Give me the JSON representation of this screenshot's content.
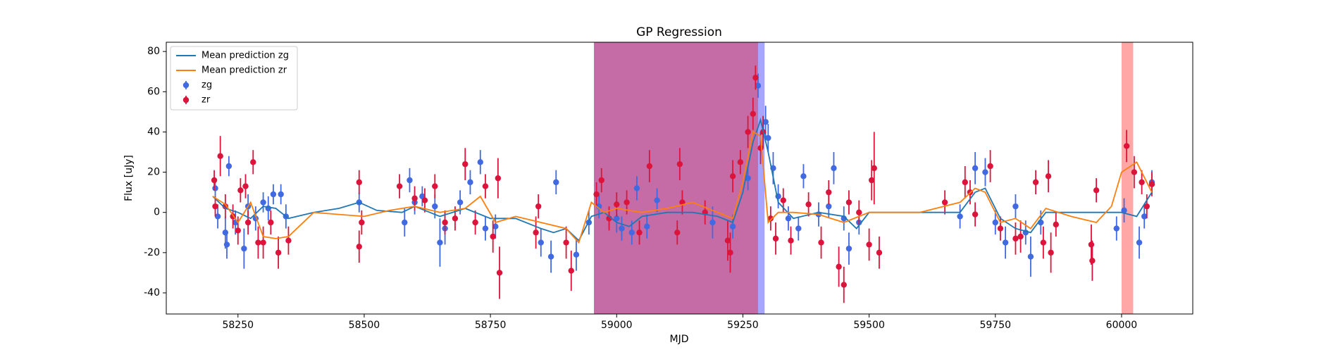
{
  "chart_data": {
    "type": "errorbar_gp",
    "title": "GP Regression",
    "x_label": "MJD",
    "y_label": "Flux [uJy]",
    "xlim": [
      58108,
      60141
    ],
    "ylim": [
      -50.5,
      84.6
    ],
    "xticks": [
      58250,
      58500,
      58750,
      59000,
      59250,
      59500,
      59750,
      60000
    ],
    "yticks": [
      -40,
      -20,
      0,
      20,
      40,
      60,
      80
    ],
    "legend": "upper left",
    "spans": [
      {
        "x": [
          58955,
          59293
        ],
        "color": "#0000ff",
        "alpha": 0.35
      },
      {
        "x": [
          58955,
          59280
        ],
        "color": "#ff0000",
        "alpha": 0.35
      },
      {
        "x": [
          60000,
          60023
        ],
        "color": "#ff0000",
        "alpha": 0.35
      }
    ],
    "series": [
      {
        "name": "Mean prediction zg",
        "kind": "line",
        "color": "#1f77b4",
        "x": [
          58200,
          58225,
          58250,
          58275,
          58300,
          58325,
          58350,
          58400,
          58450,
          58490,
          58525,
          58575,
          58600,
          58650,
          58700,
          58750,
          58800,
          58850,
          58875,
          58900,
          58925,
          58950,
          58975,
          59000,
          59025,
          59050,
          59100,
          59150,
          59200,
          59230,
          59250,
          59270,
          59285,
          59300,
          59320,
          59350,
          59400,
          59450,
          59475,
          59500,
          59600,
          59680,
          59710,
          59730,
          59760,
          59790,
          59820,
          59850,
          59900,
          59950,
          60000,
          60030,
          60060
        ],
        "values": [
          8,
          2,
          0,
          -3,
          3,
          2,
          -3,
          0,
          2,
          5,
          1,
          0,
          3,
          -2,
          2,
          -3,
          -3,
          -8,
          -10,
          -8,
          -14,
          -2,
          0,
          -5,
          -7,
          -2,
          0,
          0,
          -2,
          -5,
          10,
          35,
          46,
          30,
          5,
          -3,
          0,
          -2,
          -8,
          0,
          0,
          0,
          10,
          12,
          -3,
          -8,
          -10,
          0,
          0,
          0,
          0,
          -2,
          10
        ]
      },
      {
        "name": "Mean prediction zr",
        "kind": "line",
        "color": "#ff7f0e",
        "x": [
          58200,
          58225,
          58250,
          58275,
          58300,
          58325,
          58350,
          58400,
          58450,
          58500,
          58550,
          58575,
          58600,
          58650,
          58700,
          58730,
          58760,
          58800,
          58850,
          58900,
          58925,
          58950,
          58975,
          59000,
          59050,
          59100,
          59150,
          59200,
          59230,
          59250,
          59270,
          59285,
          59300,
          59320,
          59350,
          59400,
          59450,
          59500,
          59600,
          59680,
          59710,
          59730,
          59760,
          59790,
          59820,
          59850,
          59900,
          59950,
          59980,
          60000,
          60030,
          60060
        ],
        "values": [
          8,
          4,
          -5,
          5,
          -12,
          -13,
          -12,
          0,
          -1,
          -2,
          1,
          2,
          3,
          0,
          2,
          8,
          -5,
          -2,
          -5,
          -8,
          -15,
          5,
          0,
          2,
          0,
          2,
          5,
          0,
          -3,
          15,
          40,
          38,
          -5,
          0,
          0,
          -1,
          -5,
          0,
          0,
          5,
          12,
          10,
          -5,
          -3,
          -8,
          2,
          -2,
          -5,
          3,
          20,
          25,
          10
        ]
      },
      {
        "name": "zg",
        "kind": "points",
        "color": "#4169e1",
        "x": [
          58205,
          58210,
          58225,
          58228,
          58232,
          58245,
          58262,
          58270,
          58285,
          58300,
          58310,
          58320,
          58335,
          58345,
          58490,
          58580,
          58590,
          58600,
          58615,
          58640,
          58650,
          58660,
          58690,
          58710,
          58730,
          58740,
          58760,
          58850,
          58870,
          58880,
          58920,
          58945,
          58965,
          59000,
          59010,
          59030,
          59040,
          59060,
          59080,
          59190,
          59230,
          59260,
          59280,
          59295,
          59300,
          59310,
          59320,
          59340,
          59360,
          59370,
          59400,
          59420,
          59430,
          59450,
          59460,
          59480,
          59680,
          59710,
          59730,
          59750,
          59770,
          59790,
          59810,
          59820,
          59840,
          59990,
          60005,
          60035,
          60045,
          60060
        ],
        "values": [
          12,
          -2,
          -10,
          -16,
          23,
          -5,
          -18,
          3,
          -3,
          5,
          2,
          9,
          9,
          -2,
          5,
          -5,
          16,
          5,
          8,
          3,
          -15,
          -8,
          5,
          15,
          25,
          -8,
          -7,
          -15,
          -22,
          15,
          -21,
          -5,
          3,
          -3,
          -8,
          -10,
          12,
          -7,
          6,
          -5,
          -7,
          17,
          63,
          45,
          37,
          22,
          8,
          -3,
          -8,
          18,
          -1,
          3,
          22,
          -3,
          -18,
          -5,
          -2,
          22,
          20,
          -5,
          -15,
          3,
          -10,
          -22,
          -5,
          -8,
          1,
          -15,
          -2,
          15
        ],
        "errors": [
          4,
          6,
          8,
          7,
          5,
          6,
          10,
          6,
          6,
          5,
          6,
          5,
          5,
          6,
          5,
          7,
          6,
          6,
          5,
          6,
          12,
          8,
          6,
          6,
          6,
          6,
          6,
          7,
          8,
          6,
          8,
          6,
          6,
          7,
          6,
          6,
          6,
          6,
          6,
          8,
          6,
          6,
          6,
          8,
          7,
          8,
          6,
          6,
          6,
          6,
          6,
          6,
          8,
          6,
          8,
          6,
          6,
          8,
          7,
          6,
          8,
          6,
          6,
          10,
          6,
          6,
          6,
          8,
          6,
          6
        ]
      },
      {
        "name": "zr",
        "kind": "points",
        "color": "#dc143c",
        "x": [
          58203,
          58205,
          58215,
          58225,
          58240,
          58250,
          58255,
          58265,
          58270,
          58280,
          58290,
          58300,
          58315,
          58330,
          58350,
          58490,
          58490,
          58495,
          58570,
          58600,
          58620,
          58640,
          58660,
          58680,
          58700,
          58720,
          58740,
          58755,
          58765,
          58768,
          58840,
          58845,
          58900,
          58910,
          58960,
          58970,
          58985,
          59000,
          59020,
          59045,
          59065,
          59120,
          59125,
          59130,
          59175,
          59220,
          59225,
          59230,
          59245,
          59260,
          59270,
          59275,
          59285,
          59290,
          59305,
          59315,
          59330,
          59345,
          59380,
          59405,
          59420,
          59440,
          59450,
          59460,
          59480,
          59500,
          59505,
          59510,
          59520,
          59650,
          59690,
          59700,
          59710,
          59740,
          59760,
          59790,
          59800,
          59830,
          59845,
          59855,
          59860,
          59870,
          59940,
          59942,
          59950,
          60010,
          60025,
          60040,
          60050,
          60060
        ],
        "values": [
          16,
          3,
          28,
          3,
          -2,
          -9,
          11,
          13,
          -5,
          25,
          -15,
          -15,
          -5,
          -20,
          -14,
          15,
          -17,
          -5,
          13,
          7,
          6,
          13,
          -5,
          -3,
          24,
          -5,
          13,
          -12,
          17,
          -30,
          -10,
          3,
          -15,
          -29,
          9,
          16,
          -3,
          4,
          5,
          -10,
          23,
          -10,
          24,
          5,
          0,
          -14,
          -20,
          18,
          25,
          40,
          49,
          67,
          32,
          40,
          -3,
          -13,
          6,
          -14,
          4,
          -15,
          10,
          -27,
          -36,
          5,
          0,
          -16,
          16,
          22,
          -20,
          5,
          15,
          10,
          -1,
          23,
          -8,
          -13,
          -12,
          15,
          -15,
          18,
          -20,
          -6,
          -16,
          -24,
          11,
          33,
          20,
          15,
          3,
          14
        ],
        "errors": [
          5,
          5,
          10,
          6,
          6,
          7,
          6,
          6,
          6,
          6,
          8,
          8,
          6,
          8,
          7,
          6,
          8,
          6,
          6,
          6,
          6,
          6,
          6,
          6,
          8,
          6,
          6,
          8,
          10,
          13,
          8,
          6,
          8,
          10,
          6,
          6,
          6,
          6,
          6,
          6,
          8,
          6,
          8,
          6,
          6,
          10,
          10,
          8,
          6,
          8,
          8,
          6,
          8,
          8,
          6,
          8,
          6,
          7,
          6,
          8,
          6,
          10,
          9,
          6,
          6,
          8,
          10,
          18,
          8,
          6,
          8,
          6,
          6,
          8,
          6,
          8,
          8,
          6,
          8,
          8,
          10,
          6,
          10,
          10,
          6,
          8,
          8,
          6,
          6,
          6
        ]
      }
    ]
  }
}
